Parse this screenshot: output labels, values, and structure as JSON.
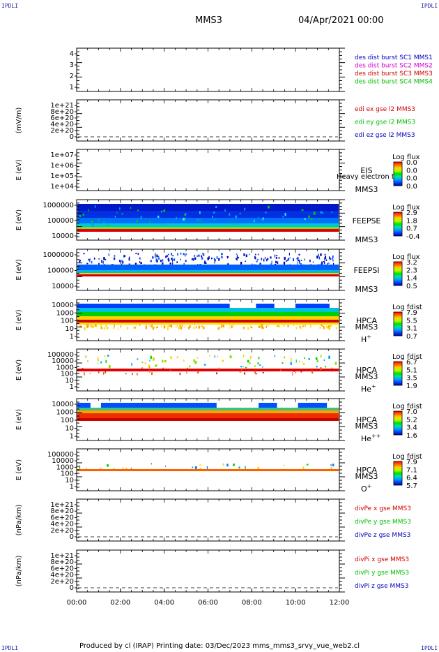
{
  "corner_label": "IPDLI",
  "header": {
    "spacecraft": "MMS3",
    "datetime": "04/Apr/2021 00:00"
  },
  "footer": "Produced by cl (IRAP)   Printing date: 03/Dec/2023   mms_mms3_srvy_vue_web2.cl",
  "colors": {
    "mms1": "#0000c0",
    "mms2": "#d000d0",
    "mms3": "#d00000",
    "mms4": "#00c000",
    "x": "#d00000",
    "y": "#00c000",
    "z": "#0000c0"
  },
  "chart_data": {
    "type": "heatmap",
    "x_range": [
      "00:00",
      "12:00"
    ],
    "x_ticks": [
      "00:00",
      "02:00",
      "04:00",
      "06:00",
      "08:00",
      "10:00",
      "12:00"
    ],
    "panels": [
      {
        "id": "des-dist",
        "ylabel": "",
        "ytick_labels": [
          "4",
          "3",
          "2",
          "1"
        ],
        "right_labels": [
          {
            "text": "des dist burst SC1 MMS1",
            "color": "#0000c0"
          },
          {
            "text": "des dist burst SC2 MMS2",
            "color": "#d000d0"
          },
          {
            "text": "des dist burst SC3 MMS3",
            "color": "#d00000"
          },
          {
            "text": "des dist burst SC4 MMS4",
            "color": "#00c000"
          }
        ]
      },
      {
        "id": "edi-e",
        "ylabel": "(mV/m)",
        "ytick_labels": [
          "1e+21",
          "8e+20",
          "6e+20",
          "4e+20",
          "2e+20",
          "0"
        ],
        "right_labels": [
          {
            "text": "edi ex gse l2 MMS3",
            "color": "#d00000"
          },
          {
            "text": "edi ey gse l2 MMS3",
            "color": "#00c000"
          },
          {
            "text": "edi ez gse l2 MMS3",
            "color": "#0000c0"
          }
        ]
      },
      {
        "id": "eis",
        "ylabel": "E (eV)",
        "ytick_labels": [
          "1e+07",
          "1e+06",
          "1e+05",
          "1e+04"
        ],
        "instrument": [
          "EIS",
          "MMS3"
        ],
        "overlay": "Heavy electron tof",
        "colorbar": {
          "title": "Log flux",
          "ticks": [
            "0.0",
            "0.0",
            "0.0",
            "0.0"
          ]
        }
      },
      {
        "id": "feepse",
        "ylabel": "E (eV)",
        "ytick_labels": [
          "1000000",
          "100000",
          "10000"
        ],
        "instrument": [
          "FEEPSE",
          "MMS3"
        ],
        "colorbar": {
          "title": "Log flux",
          "ticks": [
            "2.9",
            "1.8",
            "0.7",
            "-0.4"
          ]
        }
      },
      {
        "id": "feepsi",
        "ylabel": "E (eV)",
        "ytick_labels": [
          "1000000",
          "100000",
          "10000"
        ],
        "instrument": [
          "FEEPSI",
          "MMS3"
        ],
        "colorbar": {
          "title": "Log flux",
          "ticks": [
            "3.2",
            "2.3",
            "1.4",
            "0.5"
          ]
        }
      },
      {
        "id": "hpca-h",
        "ylabel": "E (eV)",
        "ytick_labels": [
          "10000",
          "1000",
          "100",
          "10",
          "1"
        ],
        "instrument": [
          "HPCA",
          "MMS3",
          "H+"
        ],
        "colorbar": {
          "title": "Log fdist",
          "ticks": [
            "7.9",
            "5.5",
            "3.1",
            "0.7"
          ]
        }
      },
      {
        "id": "hpca-he",
        "ylabel": "E (eV)",
        "ytick_labels": [
          "100000",
          "10000",
          "1000",
          "100",
          "10",
          "1"
        ],
        "instrument": [
          "HPCA",
          "MMS3",
          "He+"
        ],
        "colorbar": {
          "title": "Log fdist",
          "ticks": [
            "6.7",
            "5.1",
            "3.5",
            "1.9"
          ]
        }
      },
      {
        "id": "hpca-hepp",
        "ylabel": "E (eV)",
        "ytick_labels": [
          "10000",
          "1000",
          "100",
          "10",
          "1"
        ],
        "instrument": [
          "HPCA",
          "MMS3",
          "He++"
        ],
        "colorbar": {
          "title": "Log fdist",
          "ticks": [
            "7.0",
            "5.2",
            "3.4",
            "1.6"
          ]
        }
      },
      {
        "id": "hpca-o",
        "ylabel": "E (eV)",
        "ytick_labels": [
          "100000",
          "10000",
          "1000",
          "100",
          "10",
          "1"
        ],
        "instrument": [
          "HPCA",
          "MMS3",
          "O+"
        ],
        "colorbar": {
          "title": "Log fdist",
          "ticks": [
            "7.9",
            "7.1",
            "6.4",
            "5.7"
          ]
        }
      },
      {
        "id": "divpe",
        "ylabel": "(nPa/km)",
        "ytick_labels": [
          "1e+21",
          "8e+20",
          "6e+20",
          "4e+20",
          "2e+20",
          "0"
        ],
        "right_labels": [
          {
            "text": "divPe x gse MMS3",
            "color": "#d00000"
          },
          {
            "text": "divPe y gse MMS3",
            "color": "#00c000"
          },
          {
            "text": "divPe z gse MMS3",
            "color": "#0000c0"
          }
        ]
      },
      {
        "id": "divpi",
        "ylabel": "(nPa/km)",
        "ytick_labels": [
          "1e+21",
          "8e+20",
          "6e+20",
          "4e+20",
          "2e+20",
          "0"
        ],
        "right_labels": [
          {
            "text": "divPi x gse MMS3",
            "color": "#d00000"
          },
          {
            "text": "divPi y gse MMS3",
            "color": "#00c000"
          },
          {
            "text": "divPi z gse MMS3",
            "color": "#0000c0"
          }
        ]
      }
    ]
  }
}
